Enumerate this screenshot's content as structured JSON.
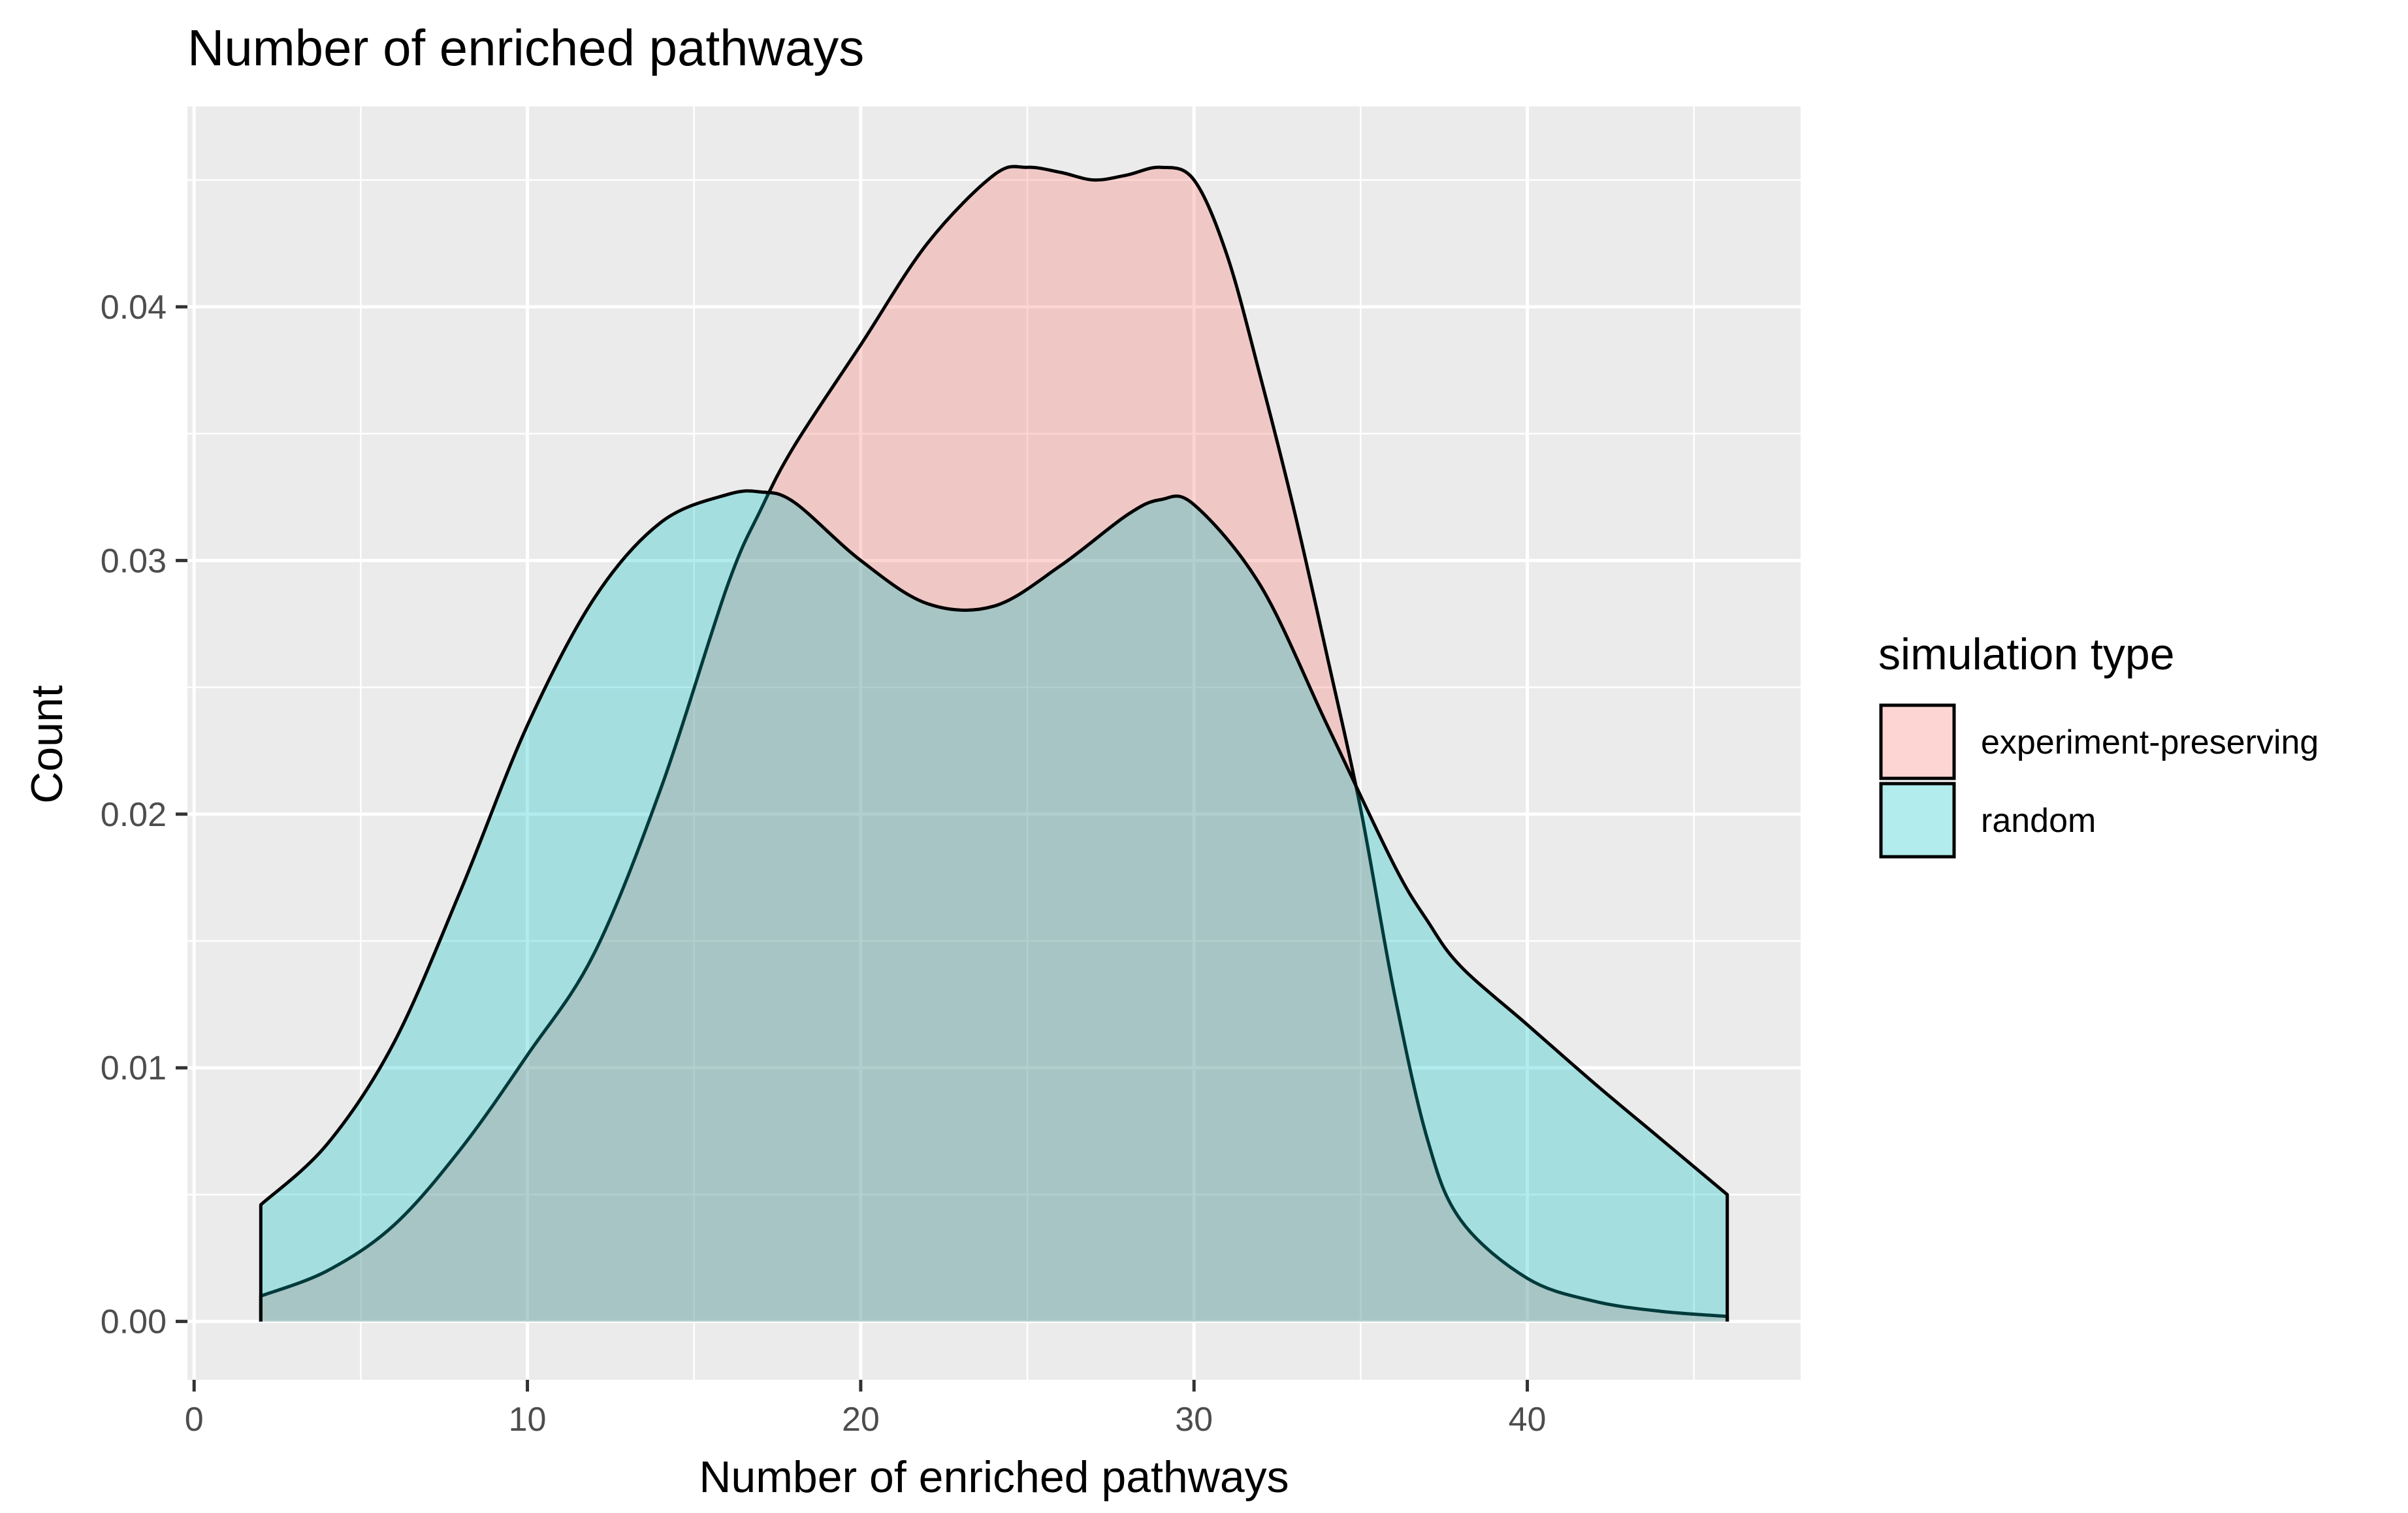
{
  "chart_data": {
    "type": "area",
    "subtype": "density",
    "title": "Number of enriched pathways",
    "xlabel": "Number of enriched pathways",
    "ylabel": "Count",
    "xlim": [
      -0.2,
      48.2
    ],
    "ylim": [
      -0.0023,
      0.0479
    ],
    "x_ticks": [
      0,
      10,
      20,
      30,
      40
    ],
    "y_ticks": [
      0.0,
      0.01,
      0.02,
      0.03,
      0.04
    ],
    "x_tick_labels": [
      "0",
      "10",
      "20",
      "30",
      "40"
    ],
    "y_tick_labels": [
      "0.00",
      "0.01",
      "0.02",
      "0.03",
      "0.04"
    ],
    "grid": true,
    "background": "#ebebeb",
    "legend": {
      "title": "simulation type",
      "placement": "right",
      "entries": [
        "experiment-preserving",
        "random"
      ]
    },
    "series": [
      {
        "name": "experiment-preserving",
        "color": "#f8766d",
        "x": [
          2,
          4,
          6,
          8,
          10,
          12,
          14,
          16,
          17,
          18,
          20,
          22,
          24,
          25,
          26,
          27,
          28,
          29,
          30,
          31,
          32,
          33,
          34,
          35,
          36,
          37,
          38,
          40,
          42,
          44,
          46
        ],
        "y": [
          0.001,
          0.002,
          0.0038,
          0.0068,
          0.0105,
          0.0145,
          0.021,
          0.029,
          0.032,
          0.0345,
          0.0385,
          0.0425,
          0.0452,
          0.0455,
          0.0453,
          0.045,
          0.0452,
          0.0455,
          0.045,
          0.042,
          0.0372,
          0.032,
          0.0262,
          0.0202,
          0.013,
          0.0072,
          0.004,
          0.0017,
          0.0008,
          0.0004,
          0.0002
        ]
      },
      {
        "name": "random",
        "color": "#00bfc4",
        "x": [
          2,
          4,
          6,
          8,
          10,
          12,
          14,
          16,
          17,
          18,
          20,
          22,
          24,
          26,
          28,
          29,
          30,
          32,
          34,
          36,
          37,
          38,
          40,
          42,
          44,
          46
        ],
        "y": [
          0.0046,
          0.007,
          0.011,
          0.017,
          0.0235,
          0.0285,
          0.0315,
          0.0326,
          0.0327,
          0.0323,
          0.03,
          0.0283,
          0.0282,
          0.0298,
          0.0318,
          0.0324,
          0.0322,
          0.029,
          0.0235,
          0.018,
          0.0158,
          0.014,
          0.0117,
          0.0094,
          0.0072,
          0.005
        ]
      }
    ]
  }
}
